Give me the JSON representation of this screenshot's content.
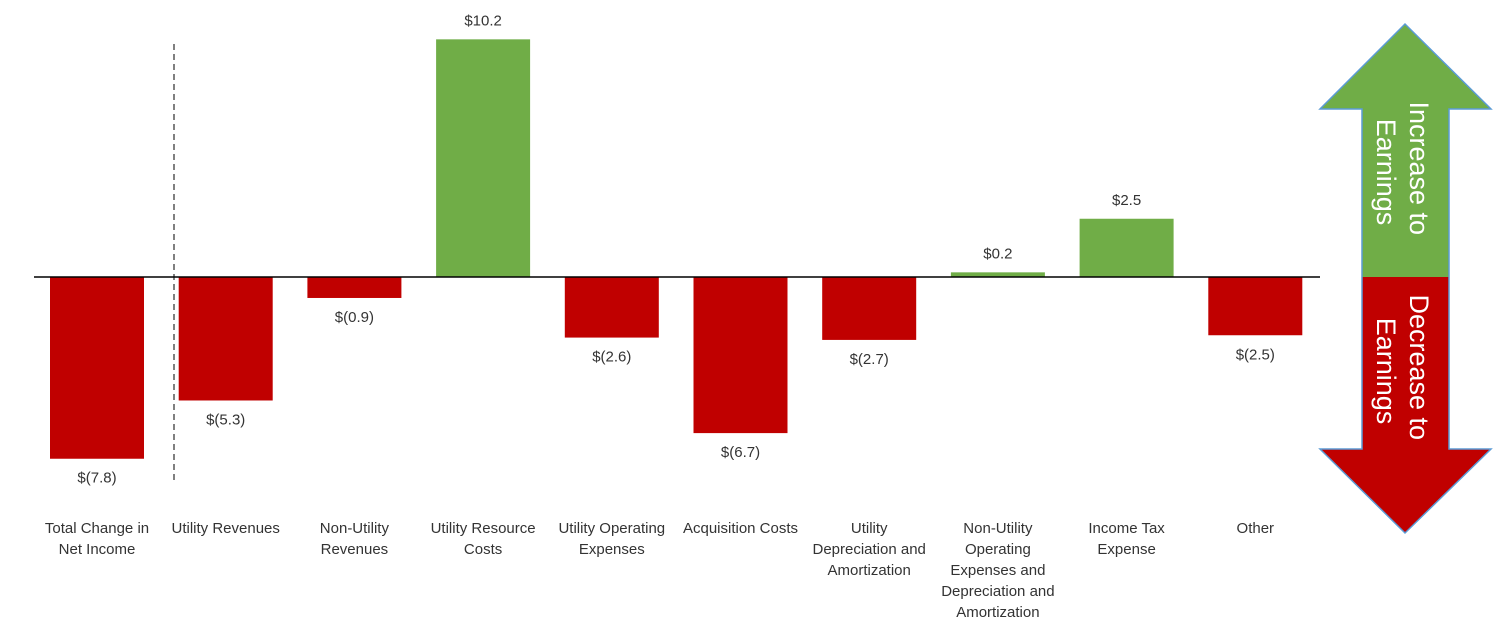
{
  "chart_data": {
    "type": "bar",
    "title": "",
    "xlabel": "",
    "ylabel": "",
    "ylim": [
      -10,
      10.5
    ],
    "grid": false,
    "categories": [
      [
        "Total Change in",
        "Net Income"
      ],
      [
        "Utility Revenues"
      ],
      [
        "Non-Utility",
        "Revenues"
      ],
      [
        "Utility Resource",
        "Costs"
      ],
      [
        "Utility Operating",
        "Expenses"
      ],
      [
        "Acquisition Costs"
      ],
      [
        "Utility",
        "Depreciation and",
        "Amortization"
      ],
      [
        "Non-Utility",
        "Operating",
        "Expenses and",
        "Depreciation and",
        "Amortization"
      ],
      [
        "Income Tax",
        "Expense"
      ],
      [
        "Other"
      ]
    ],
    "values": [
      -7.8,
      -5.3,
      -0.9,
      10.2,
      -2.6,
      -6.7,
      -2.7,
      0.2,
      2.5,
      -2.5
    ],
    "data_labels": [
      "$(7.8)",
      "$(5.3)",
      "$(0.9)",
      "$10.2",
      "$(2.6)",
      "$(6.7)",
      "$(2.7)",
      "$0.2",
      "$2.5",
      "$(2.5)"
    ],
    "colors": {
      "positive": "#70ad47",
      "negative": "#c00000",
      "arrow_border": "#5b9bd5"
    },
    "legend": {
      "increase": [
        "Increase to",
        "Earnings"
      ],
      "decrease": [
        "Decrease to",
        "Earnings"
      ]
    }
  }
}
